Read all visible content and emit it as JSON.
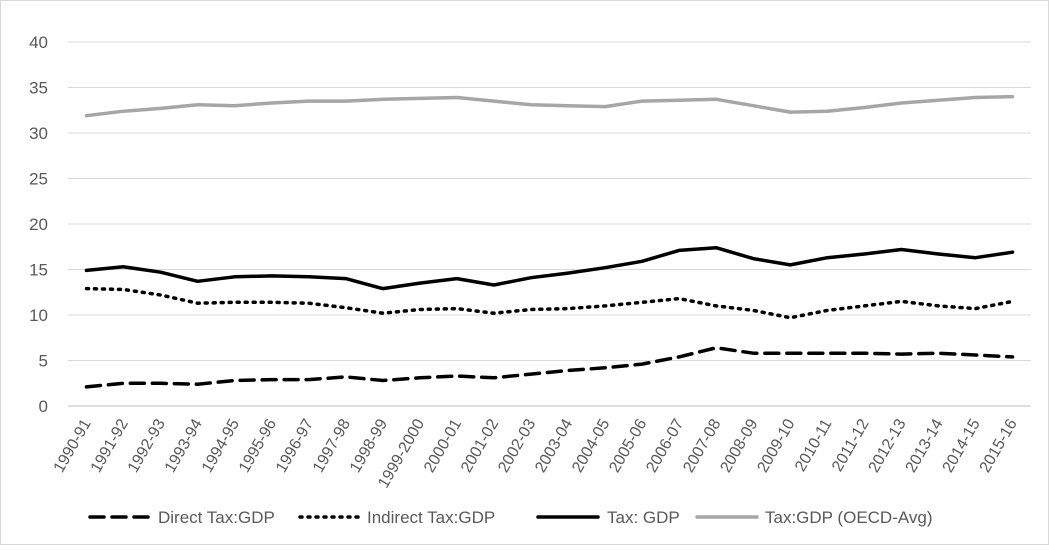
{
  "chart_data": {
    "type": "line",
    "title": "",
    "xlabel": "",
    "ylabel": "",
    "ylim": [
      0,
      40
    ],
    "yticks": [
      0,
      5,
      10,
      15,
      20,
      25,
      30,
      35,
      40
    ],
    "grid": true,
    "legend_position": "bottom",
    "categories": [
      "1990-91",
      "1991-92",
      "1992-93",
      "1993-94",
      "1994-95",
      "1995-96",
      "1996-97",
      "1997-98",
      "1998-99",
      "1999-2000",
      "2000-01",
      "2001-02",
      "2002-03",
      "2003-04",
      "2004-05",
      "2005-06",
      "2006-07",
      "2007-08",
      "2008-09",
      "2009-10",
      "2010-11",
      "2011-12",
      "2012-13",
      "2013-14",
      "2014-15",
      "2015-16"
    ],
    "series": [
      {
        "name": "Direct Tax:GDP",
        "color": "#000000",
        "style": "dashed",
        "values": [
          2.1,
          2.5,
          2.5,
          2.4,
          2.8,
          2.9,
          2.9,
          3.2,
          2.8,
          3.1,
          3.3,
          3.1,
          3.5,
          3.9,
          4.2,
          4.6,
          5.4,
          6.4,
          5.8,
          5.8,
          5.8,
          5.8,
          5.7,
          5.8,
          5.6,
          5.4
        ]
      },
      {
        "name": "Indirect Tax:GDP",
        "color": "#000000",
        "style": "dotted",
        "values": [
          12.9,
          12.8,
          12.2,
          11.3,
          11.4,
          11.4,
          11.3,
          10.8,
          10.2,
          10.6,
          10.7,
          10.2,
          10.6,
          10.7,
          11.0,
          11.4,
          11.8,
          11.0,
          10.5,
          9.7,
          10.5,
          11.0,
          11.5,
          11.0,
          10.7,
          11.5
        ]
      },
      {
        "name": "Tax: GDP",
        "color": "#000000",
        "style": "solid",
        "values": [
          14.9,
          15.3,
          14.7,
          13.7,
          14.2,
          14.3,
          14.2,
          14.0,
          12.9,
          13.5,
          14.0,
          13.3,
          14.1,
          14.6,
          15.2,
          15.9,
          17.1,
          17.4,
          16.2,
          15.5,
          16.3,
          16.7,
          17.2,
          16.7,
          16.3,
          16.9
        ]
      },
      {
        "name": "Tax:GDP (OECD-Avg)",
        "color": "#a6a6a6",
        "style": "solid",
        "values": [
          31.9,
          32.4,
          32.7,
          33.1,
          33.0,
          33.3,
          33.5,
          33.5,
          33.7,
          33.8,
          33.9,
          33.5,
          33.1,
          33.0,
          32.9,
          33.5,
          33.6,
          33.7,
          33.0,
          32.3,
          32.4,
          32.8,
          33.3,
          33.6,
          33.9,
          34.0
        ]
      }
    ]
  }
}
